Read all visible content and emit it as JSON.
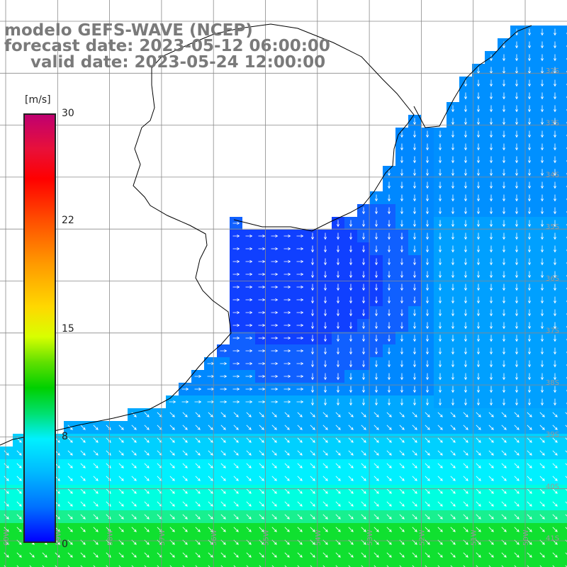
{
  "title": {
    "line1": "modelo GEFS-WAVE (NCEP)",
    "line2": "forecast date: 2023-05-12 06:00:00",
    "line3": "valid date: 2023-05-24 12:00:00"
  },
  "colorbar": {
    "unit": "[m/s]",
    "ticks": [
      "30",
      "22",
      "15",
      "8",
      "0"
    ]
  },
  "map": {
    "lat_labels": [
      "32S",
      "33S",
      "34S",
      "35S",
      "36S",
      "37S",
      "38S",
      "39S",
      "40S",
      "41S"
    ],
    "lon_labels": [
      "60W",
      "59W",
      "58W",
      "57W",
      "56W",
      "55W",
      "54W",
      "53W",
      "52W",
      "51W",
      "50W"
    ],
    "land_color": "#ffffff",
    "coast_color": "#000000",
    "grid_color": "#8a8a8a"
  }
}
